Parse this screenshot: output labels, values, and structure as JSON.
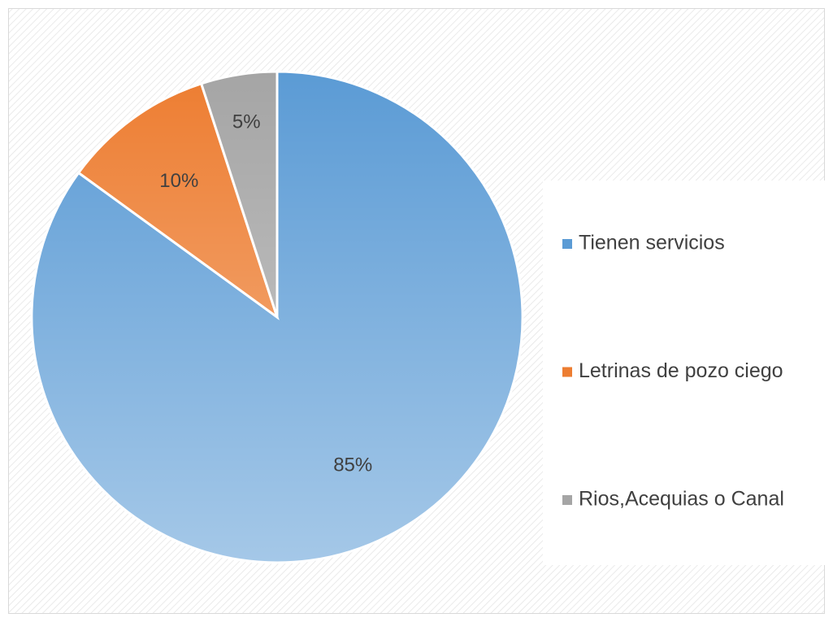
{
  "chart_data": {
    "type": "pie",
    "categories": [
      "Tienen servicios",
      "Letrinas de pozo ciego",
      "Rios,Acequias o Canal"
    ],
    "values": [
      85,
      10,
      5
    ],
    "value_labels": [
      "85%",
      "10%",
      "5%"
    ],
    "colors": [
      "#5b9bd5",
      "#ed7d31",
      "#a5a5a5"
    ],
    "legend": "right"
  }
}
